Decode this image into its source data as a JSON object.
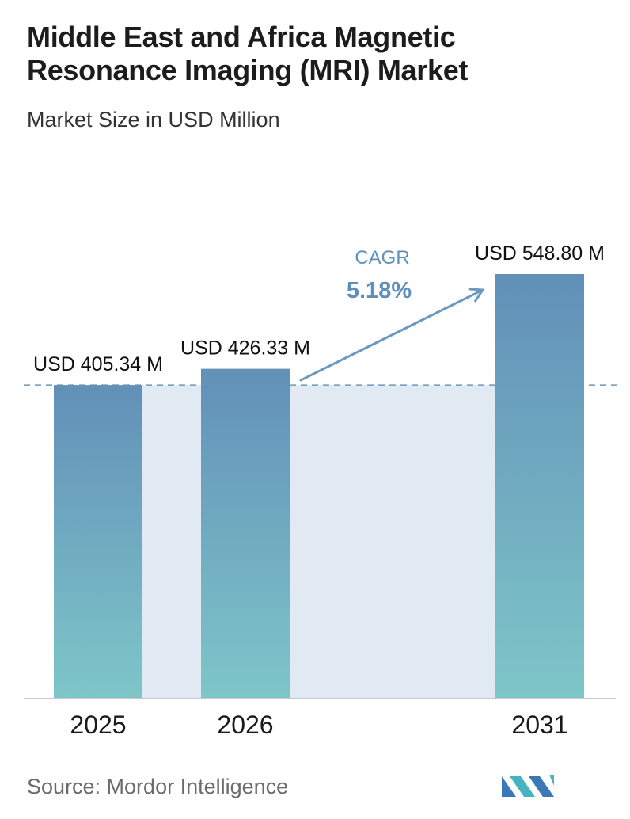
{
  "header": {
    "title": "Middle East and Africa Magnetic Resonance Imaging (MRI) Market",
    "subtitle": "Market Size in USD Million"
  },
  "chart_data": {
    "type": "bar",
    "title": "Middle East and Africa Magnetic Resonance Imaging (MRI) Market",
    "subtitle": "Market Size in USD Million",
    "categories": [
      "2025",
      "2026",
      "2031"
    ],
    "values": [
      405.34,
      426.33,
      548.8
    ],
    "data_labels": [
      "USD 405.34 M",
      "USD 426.33 M",
      "USD 548.80 M"
    ],
    "ylim": [
      0,
      548.8
    ],
    "grid": false,
    "reference_line": "dashed line at 2025 value",
    "annotation": {
      "label": "CAGR",
      "value": "5.18%"
    },
    "colors": {
      "bar_top": "#6290b8",
      "bar_bottom": "#7ec6c9",
      "band": "#e1e9f2",
      "arrow": "#6a98c0",
      "cagr_text": "#5f8fbd"
    }
  },
  "footer": {
    "source": "Source:  Mordor Intelligence",
    "logo_icon": "mordor-intelligence-logo-icon"
  }
}
